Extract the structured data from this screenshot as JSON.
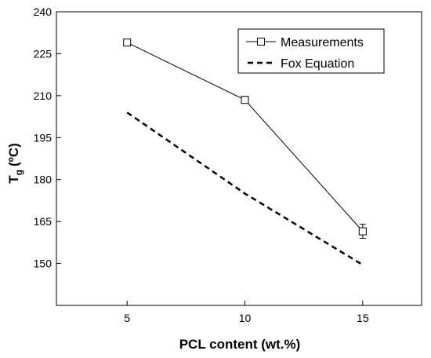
{
  "chart_data": {
    "type": "line",
    "xlabel": "PCL content (wt.%)",
    "ylabel": "T",
    "ylabel_sub": "g",
    "ylabel_unit": "(ºC)",
    "xlim": [
      2,
      17.5
    ],
    "ylim": [
      135,
      240
    ],
    "xticks": [
      5,
      10,
      15
    ],
    "yticks": [
      150,
      165,
      180,
      195,
      210,
      225,
      240
    ],
    "grid": false,
    "legend_position": "top-right",
    "series": [
      {
        "name": "Measurements",
        "style": "line-square-markers",
        "color": "#000000",
        "x": [
          5,
          10,
          15
        ],
        "y": [
          229,
          208.5,
          161.5
        ],
        "error": [
          0.5,
          0.8,
          2.5
        ]
      },
      {
        "name": "Fox Equation",
        "style": "dashed",
        "color": "#000000",
        "x": [
          5,
          10,
          15
        ],
        "y": [
          204,
          175,
          149.5
        ]
      }
    ]
  }
}
